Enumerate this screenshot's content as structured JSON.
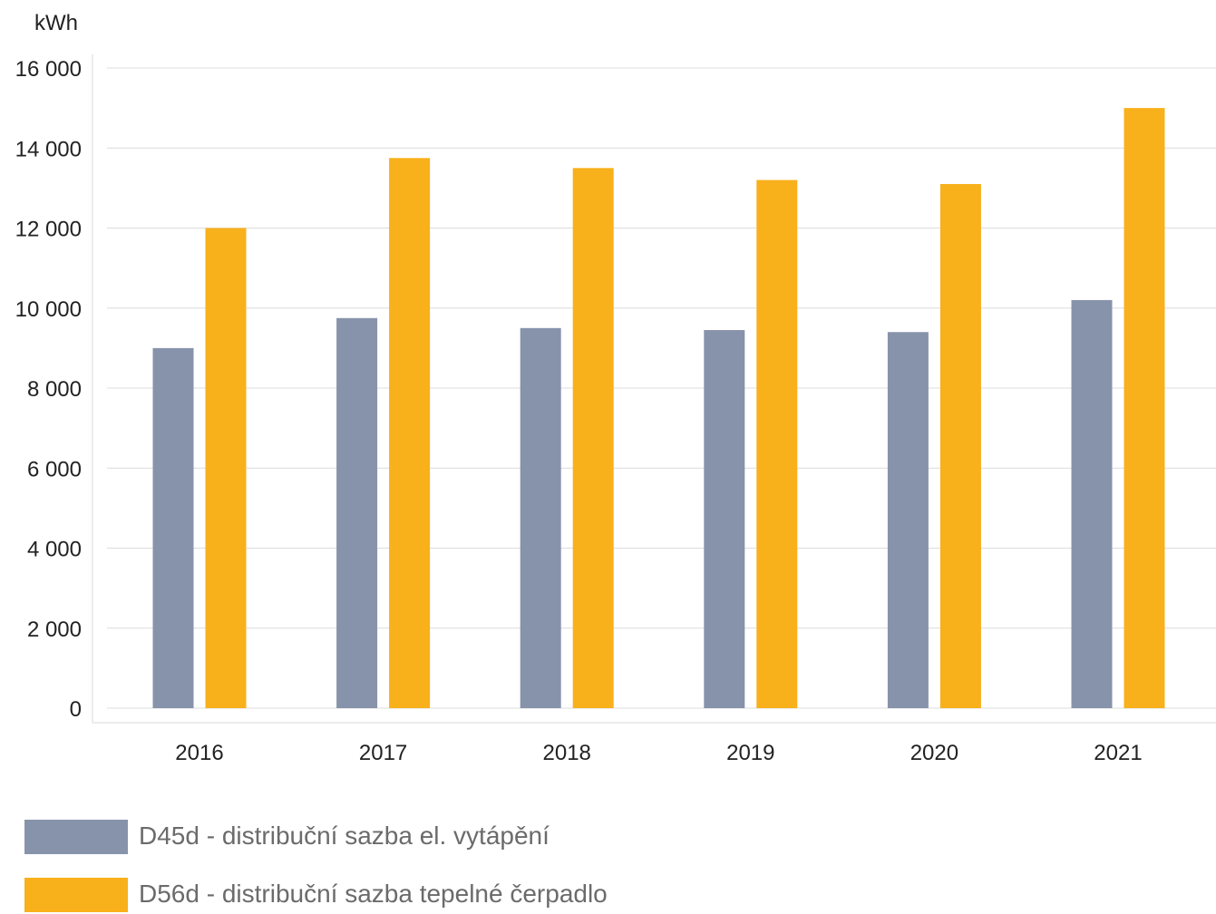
{
  "chart_data": {
    "type": "bar",
    "unit": "kWh",
    "categories": [
      "2016",
      "2017",
      "2018",
      "2019",
      "2020",
      "2021"
    ],
    "series": [
      {
        "name": "D45d - distribuční sazba el. vytápění",
        "color": "#8793ab",
        "values": [
          9000,
          9750,
          9500,
          9450,
          9400,
          10200
        ]
      },
      {
        "name": "D56d - distribuční sazba tepelné čerpadlo",
        "color": "#f8b01b",
        "values": [
          12000,
          13750,
          13500,
          13200,
          13100,
          15000
        ]
      }
    ],
    "ylim": [
      0,
      16000
    ],
    "yticks": [
      0,
      2000,
      4000,
      6000,
      8000,
      10000,
      12000,
      14000,
      16000
    ],
    "ytick_labels": [
      "0",
      "2 000",
      "4 000",
      "6 000",
      "8 000",
      "10 000",
      "12 000",
      "14 000",
      "16 000"
    ],
    "grid": true,
    "legend_position": "bottom-left"
  }
}
